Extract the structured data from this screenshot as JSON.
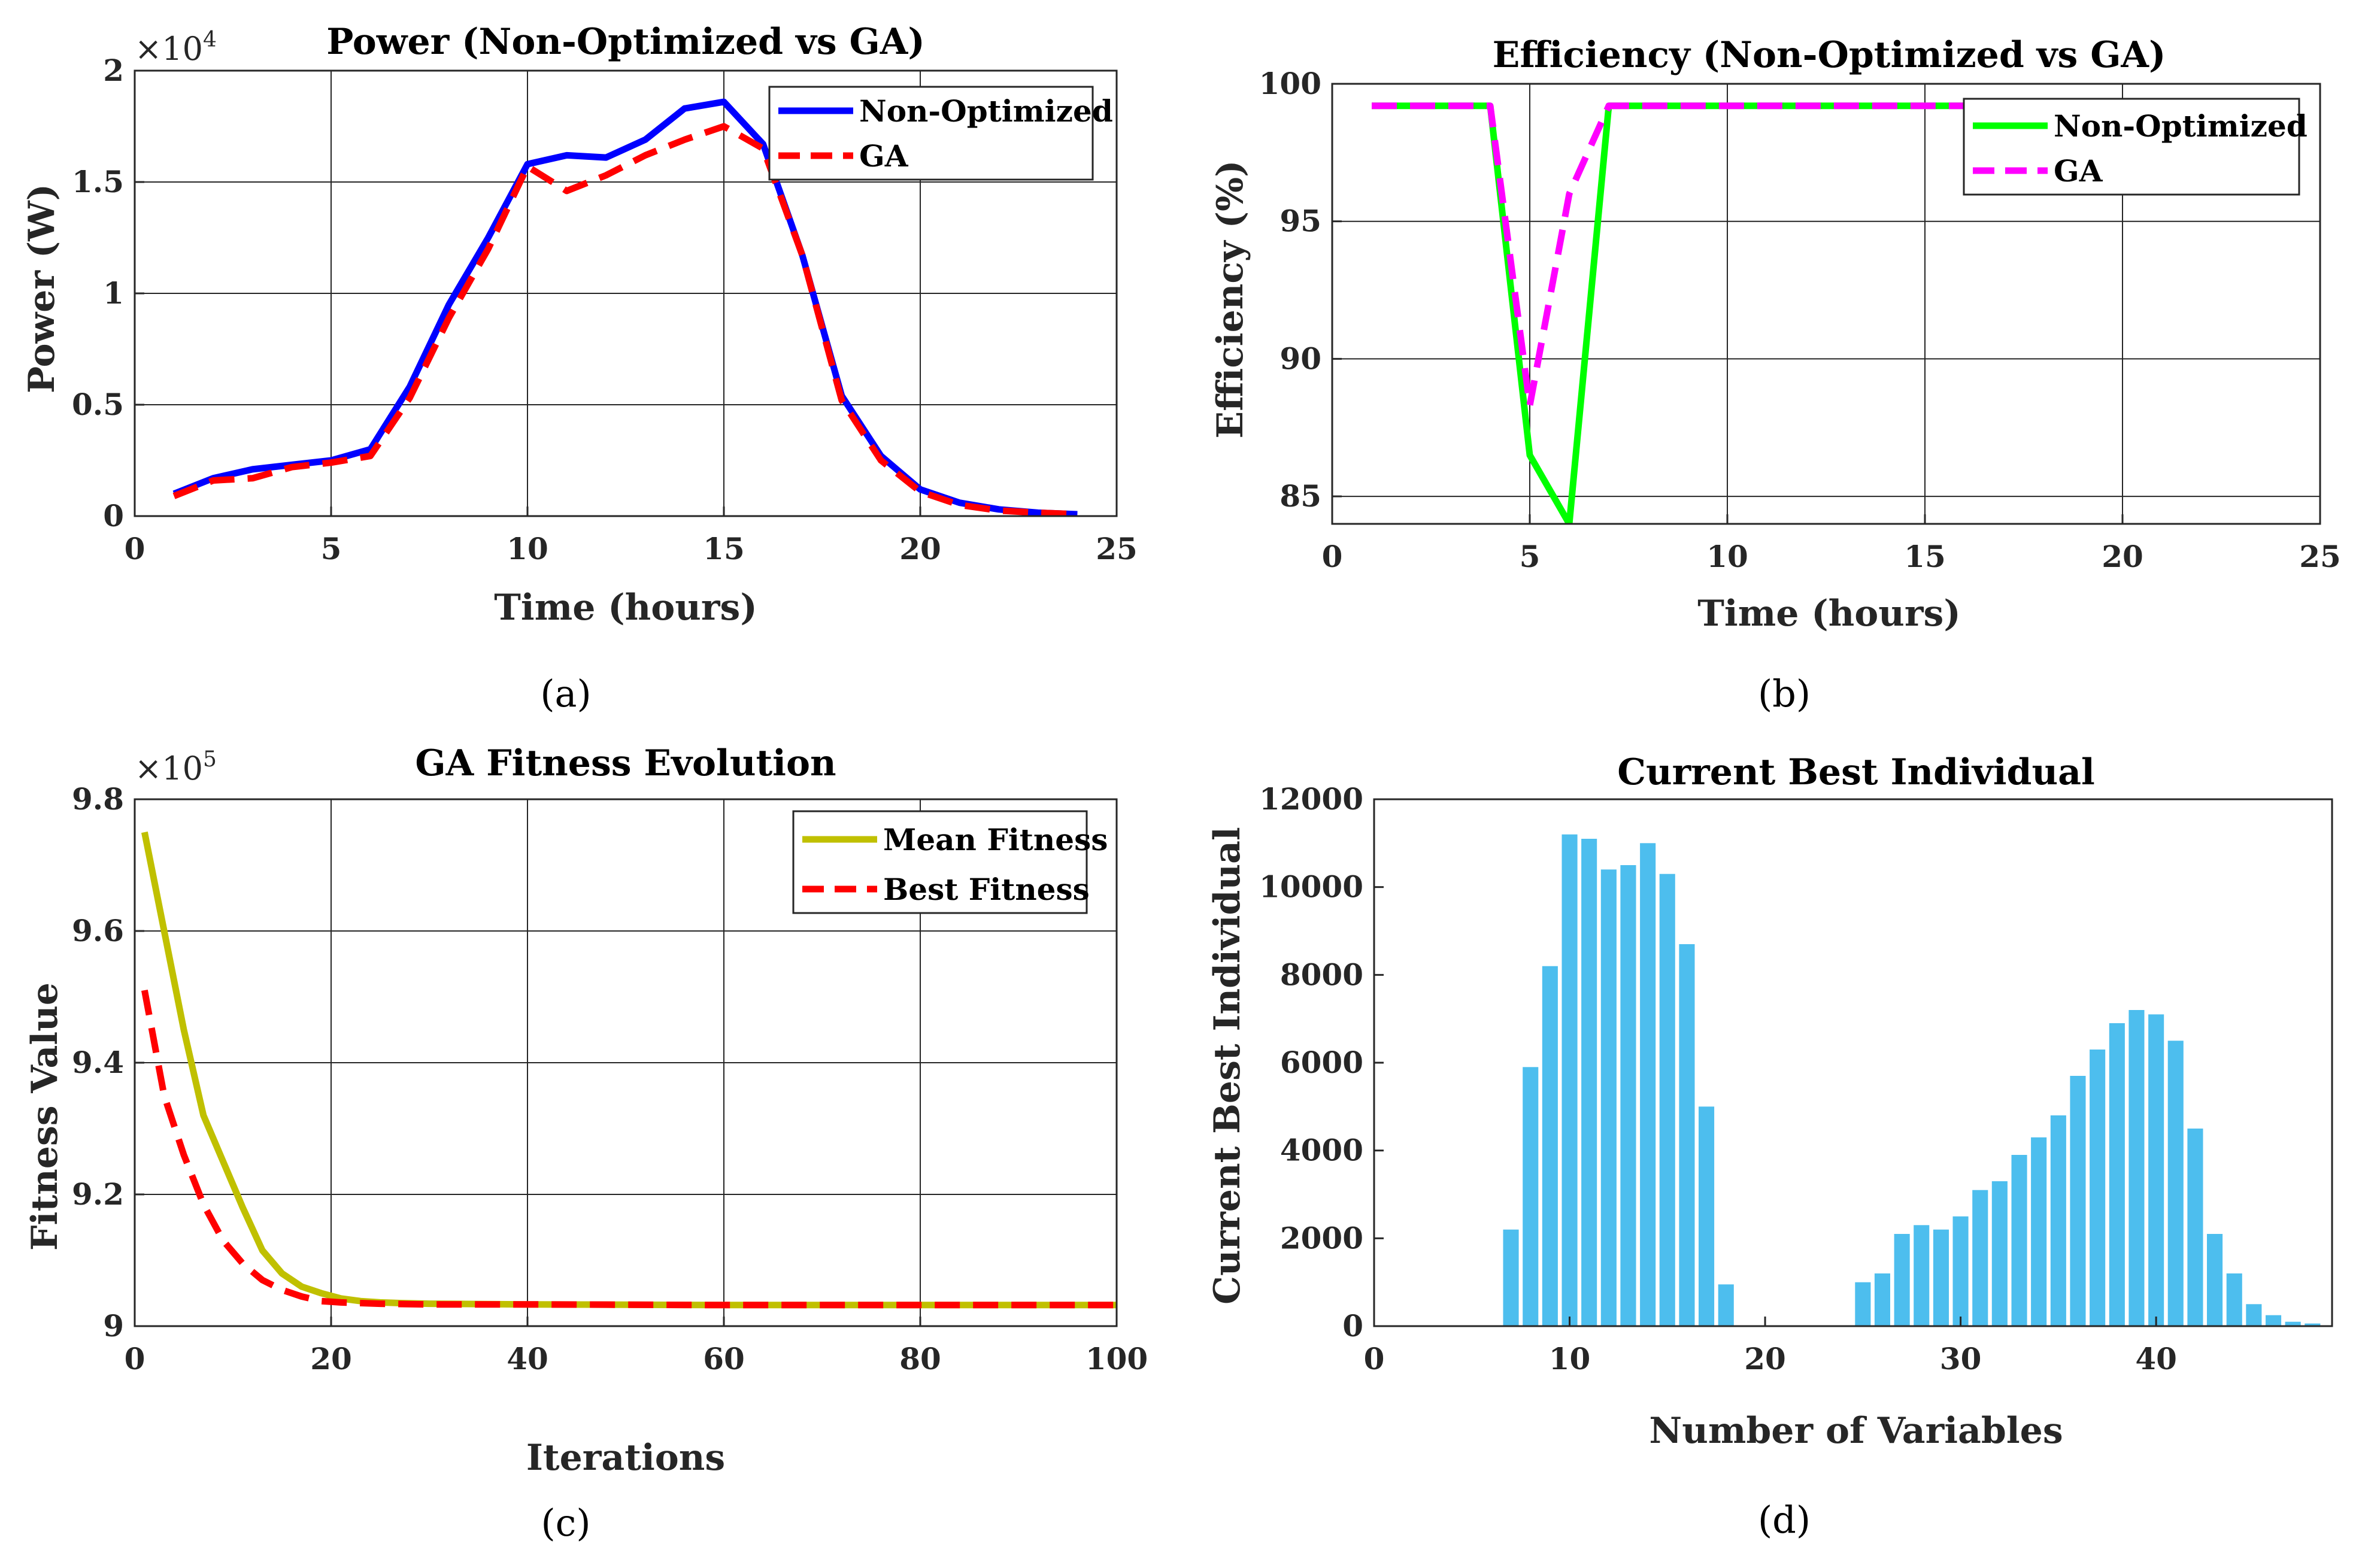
{
  "chart_data": [
    {
      "id": "a",
      "type": "line",
      "panel_label": "(a)",
      "title": "Power (Non-Optimized vs  GA)",
      "xlabel": "Time (hours)",
      "ylabel": "Power (W)",
      "xlim": [
        0,
        25
      ],
      "ylim": [
        0,
        20000
      ],
      "xticks": [
        0,
        5,
        10,
        15,
        20,
        25
      ],
      "xtick_labels": [
        "0",
        "5",
        "10",
        "15",
        "20",
        "25"
      ],
      "yticks": [
        0,
        5000,
        10000,
        15000,
        20000
      ],
      "ytick_labels": [
        "0",
        "0.5",
        "1",
        "1.5",
        "2"
      ],
      "exponent_base": "×10",
      "exponent_power": "4",
      "grid": true,
      "legend_position": "top-right",
      "x": [
        1,
        2,
        3,
        4,
        5,
        6,
        7,
        8,
        9,
        10,
        11,
        12,
        13,
        14,
        15,
        16,
        17,
        18,
        19,
        20,
        21,
        22,
        23,
        24
      ],
      "series": [
        {
          "name": "Non-Optimized",
          "color": "#0000ff",
          "dash": "solid",
          "values": [
            1000,
            1700,
            2100,
            2300,
            2500,
            3000,
            5800,
            9500,
            12500,
            15800,
            16200,
            16100,
            16900,
            18300,
            18600,
            16700,
            11700,
            5400,
            2700,
            1200,
            600,
            300,
            150,
            80
          ]
        },
        {
          "name": "GA",
          "color": "#ff0000",
          "dash": "dashed",
          "values": [
            900,
            1600,
            1700,
            2200,
            2400,
            2700,
            5300,
            8900,
            12000,
            15700,
            14600,
            15300,
            16200,
            16900,
            17500,
            16500,
            11700,
            5200,
            2500,
            1100,
            500,
            250,
            150,
            80
          ]
        }
      ]
    },
    {
      "id": "b",
      "type": "line",
      "panel_label": "(b)",
      "title": "Efficiency (Non-Optimized vs  GA)",
      "xlabel": "Time (hours)",
      "ylabel": "Efficiency (%)",
      "xlim": [
        0,
        25
      ],
      "ylim": [
        84,
        100
      ],
      "xticks": [
        0,
        5,
        10,
        15,
        20,
        25
      ],
      "xtick_labels": [
        "0",
        "5",
        "10",
        "15",
        "20",
        "25"
      ],
      "yticks": [
        85,
        90,
        95,
        100
      ],
      "ytick_labels": [
        "85",
        "90",
        "95",
        "100"
      ],
      "grid": true,
      "legend_position": "top-right",
      "series": [
        {
          "name": "Non-Optimized",
          "color": "#00ff00",
          "dash": "solid",
          "x": [
            1,
            2,
            3,
            4,
            5,
            6,
            7,
            8,
            9,
            10,
            11,
            12,
            13,
            14,
            15,
            16,
            17,
            18,
            19,
            20,
            21,
            22,
            23,
            24
          ],
          "values": [
            99.2,
            99.2,
            99.2,
            99.2,
            86.5,
            84,
            99.2,
            99.2,
            99.2,
            99.2,
            99.2,
            99.2,
            99.2,
            99.2,
            99.2,
            99.2,
            99.2,
            99.2,
            99.2,
            99.2,
            99.2,
            99.2,
            99.2,
            99.2
          ]
        },
        {
          "name": "GA",
          "color": "#ff00ff",
          "dash": "dashed",
          "x": [
            1,
            2,
            3,
            4,
            5,
            6,
            7,
            8,
            9,
            10,
            11,
            12,
            13,
            14,
            15,
            16,
            17,
            18,
            19,
            20,
            21,
            22,
            23,
            24
          ],
          "values": [
            99.2,
            99.2,
            99.2,
            99.2,
            88.3,
            96,
            99.2,
            99.2,
            99.2,
            99.2,
            99.2,
            99.2,
            99.2,
            99.2,
            99.2,
            99.2,
            99.2,
            99.2,
            99.2,
            99.2,
            99.2,
            99.2,
            99.2,
            99.2
          ]
        }
      ]
    },
    {
      "id": "c",
      "type": "line",
      "panel_label": "(c)",
      "title": "GA Fitness Evolution",
      "xlabel": "Iterations",
      "ylabel": "Fitness Value",
      "xlim": [
        0,
        100
      ],
      "ylim": [
        900000,
        980000
      ],
      "xticks": [
        0,
        20,
        40,
        60,
        80,
        100
      ],
      "xtick_labels": [
        "0",
        "20",
        "40",
        "60",
        "80",
        "100"
      ],
      "yticks": [
        900000,
        920000,
        940000,
        960000,
        980000
      ],
      "ytick_labels": [
        "9",
        "9.2",
        "9.4",
        "9.6",
        "9.8"
      ],
      "exponent_base": "×10",
      "exponent_power": "5",
      "grid": true,
      "legend_position": "top-right",
      "series": [
        {
          "name": "Mean Fitness",
          "color": "#c0c000",
          "dash": "solid",
          "x": [
            1,
            3,
            5,
            7,
            9,
            11,
            13,
            15,
            17,
            19,
            21,
            23,
            25,
            27,
            30,
            40,
            60,
            80,
            100
          ],
          "values": [
            975000,
            960000,
            945000,
            932000,
            925000,
            918000,
            911500,
            908000,
            906000,
            905000,
            904200,
            903800,
            903600,
            903500,
            903400,
            903300,
            903200,
            903200,
            903200
          ]
        },
        {
          "name": "Best Fitness",
          "color": "#ff0000",
          "dash": "dashed",
          "x": [
            1,
            3,
            5,
            7,
            9,
            11,
            13,
            15,
            17,
            19,
            21,
            23,
            25,
            30,
            40,
            60,
            80,
            100
          ],
          "values": [
            951000,
            935000,
            926000,
            918500,
            913000,
            909500,
            907000,
            905500,
            904500,
            903800,
            903600,
            903500,
            903400,
            903300,
            903300,
            903200,
            903200,
            903200
          ]
        }
      ]
    },
    {
      "id": "d",
      "type": "bar",
      "panel_label": "(d)",
      "title": "Current Best Individual",
      "xlabel": "Number of Variables",
      "ylabel": "Current Best Individual",
      "xlim": [
        0,
        49
      ],
      "ylim": [
        0,
        12000
      ],
      "xticks": [
        0,
        10,
        20,
        30,
        40
      ],
      "xtick_labels": [
        "0",
        "10",
        "20",
        "30",
        "40"
      ],
      "yticks": [
        0,
        2000,
        4000,
        6000,
        8000,
        10000,
        12000
      ],
      "ytick_labels": [
        "0",
        "2000",
        "4000",
        "6000",
        "8000",
        "10000",
        "12000"
      ],
      "grid": false,
      "bar_color": "#4dbeee",
      "x": [
        1,
        2,
        3,
        4,
        5,
        6,
        7,
        8,
        9,
        10,
        11,
        12,
        13,
        14,
        15,
        16,
        17,
        18,
        19,
        20,
        21,
        22,
        23,
        24,
        25,
        26,
        27,
        28,
        29,
        30,
        31,
        32,
        33,
        34,
        35,
        36,
        37,
        38,
        39,
        40,
        41,
        42,
        43,
        44,
        45,
        46,
        47,
        48
      ],
      "values": [
        0,
        0,
        0,
        0,
        0,
        0,
        2200,
        5900,
        8200,
        11200,
        11100,
        10400,
        10500,
        11000,
        10300,
        8700,
        5000,
        950,
        0,
        0,
        0,
        0,
        0,
        0,
        1000,
        1200,
        2100,
        2300,
        2200,
        2500,
        3100,
        3300,
        3900,
        4300,
        4800,
        5700,
        6300,
        6900,
        7200,
        7100,
        6500,
        4500,
        2100,
        1200,
        500,
        250,
        100,
        60
      ]
    }
  ]
}
